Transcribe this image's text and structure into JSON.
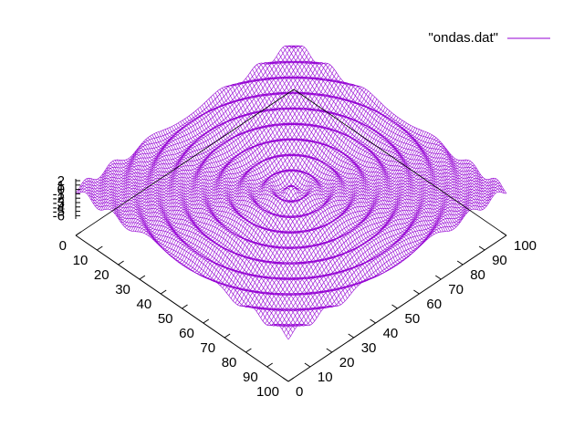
{
  "chart_data": {
    "type": "surface",
    "title": "",
    "legend": {
      "label": "\"ondas.dat\"",
      "color": "#9400d3",
      "placement": "top-right"
    },
    "x_axis": {
      "range": [
        0,
        100
      ],
      "ticks": [
        "0",
        "10",
        "20",
        "30",
        "40",
        "50",
        "60",
        "70",
        "80",
        "90",
        "100"
      ]
    },
    "y_axis": {
      "range": [
        0,
        100
      ],
      "ticks": [
        "0",
        "10",
        "20",
        "30",
        "40",
        "50",
        "60",
        "70",
        "80",
        "90",
        "100"
      ]
    },
    "z_axis": {
      "ticks": [
        "2",
        "1",
        "0",
        "-1",
        "-2",
        "-3",
        "-4",
        "-5",
        "-6"
      ]
    },
    "surface": {
      "description_function": "concentric radial waves centered at (50,50)",
      "center": [
        50,
        50
      ],
      "grid_points": 101,
      "amplitude": 0.8,
      "wavelength": 7.5
    },
    "colors": {
      "line": "#9400d3",
      "axis": "#000000"
    }
  }
}
